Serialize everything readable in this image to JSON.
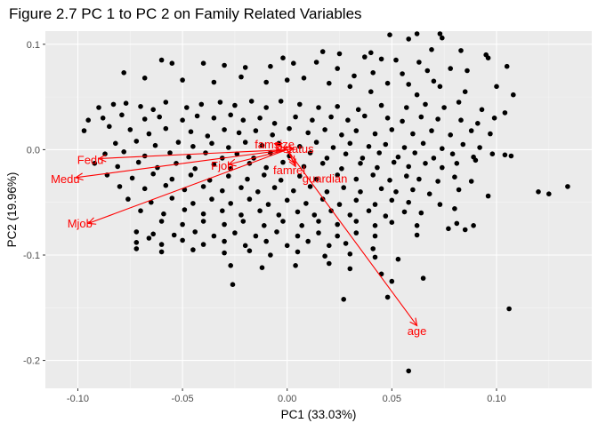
{
  "chart_data": {
    "type": "scatter",
    "title": "Figure 2.7 PC 1 to PC 2 on Family Related Variables",
    "xlabel": "PC1 (33.03%)",
    "ylabel": "PC2 (19.96%)",
    "xlim": [
      -0.1155,
      0.1455
    ],
    "ylim": [
      -0.2265,
      0.1125
    ],
    "xticks": [
      -0.1,
      -0.05,
      0.0,
      0.05,
      0.1
    ],
    "xtick_labels": [
      "-0.10",
      "-0.05",
      "0.00",
      "0.05",
      "0.10"
    ],
    "yticks": [
      -0.2,
      -0.1,
      0.0,
      0.1
    ],
    "ytick_labels": [
      "-0.2",
      "-0.1",
      "0.0",
      "0.1"
    ],
    "grid": true,
    "colors": {
      "panel": "#ebebeb",
      "grid_major": "#ffffff",
      "grid_minor": "#f5f5f5",
      "points": "#000000",
      "arrows": "#ff0000",
      "tick_label": "#4d4d4d"
    },
    "points": [
      [
        0.049,
        0.109
      ],
      [
        0.062,
        0.11
      ],
      [
        0.073,
        0.11
      ],
      [
        0.074,
        0.106
      ],
      [
        0.058,
        0.105
      ],
      [
        0.04,
        0.092
      ],
      [
        0.025,
        0.091
      ],
      [
        0.037,
        0.088
      ],
      [
        0.017,
        0.093
      ],
      [
        -0.002,
        0.087
      ],
      [
        0.095,
        0.09
      ],
      [
        0.083,
        0.094
      ],
      [
        0.069,
        0.095
      ],
      [
        0.052,
        0.085
      ],
      [
        0.045,
        0.086
      ],
      [
        0.063,
        0.083
      ],
      [
        0.078,
        0.077
      ],
      [
        0.096,
        0.087
      ],
      [
        -0.06,
        0.085
      ],
      [
        -0.055,
        0.082
      ],
      [
        -0.04,
        0.082
      ],
      [
        -0.03,
        0.08
      ],
      [
        -0.02,
        0.078
      ],
      [
        -0.008,
        0.079
      ],
      [
        0.003,
        0.082
      ],
      [
        0.014,
        0.083
      ],
      [
        0.024,
        0.077
      ],
      [
        0.032,
        0.07
      ],
      [
        0.041,
        0.073
      ],
      [
        0.055,
        0.072
      ],
      [
        0.067,
        0.075
      ],
      [
        0.086,
        0.075
      ],
      [
        0.105,
        0.079
      ],
      [
        0.07,
        0.065
      ],
      [
        0.058,
        0.062
      ],
      [
        0.048,
        0.063
      ],
      [
        -0.078,
        0.073
      ],
      [
        -0.068,
        0.068
      ],
      [
        -0.05,
        0.066
      ],
      [
        -0.035,
        0.064
      ],
      [
        -0.022,
        0.069
      ],
      [
        -0.01,
        0.064
      ],
      [
        0.0,
        0.066
      ],
      [
        0.008,
        0.068
      ],
      [
        0.02,
        0.063
      ],
      [
        0.03,
        0.06
      ],
      [
        0.04,
        0.055
      ],
      [
        0.062,
        0.052
      ],
      [
        0.073,
        0.06
      ],
      [
        0.085,
        0.055
      ],
      [
        0.1,
        0.06
      ],
      [
        0.108,
        0.052
      ],
      [
        -0.09,
        0.04
      ],
      [
        -0.083,
        0.043
      ],
      [
        -0.077,
        0.044
      ],
      [
        -0.07,
        0.041
      ],
      [
        -0.064,
        0.038
      ],
      [
        -0.058,
        0.045
      ],
      [
        -0.048,
        0.04
      ],
      [
        -0.041,
        0.043
      ],
      [
        -0.032,
        0.045
      ],
      [
        -0.025,
        0.042
      ],
      [
        -0.017,
        0.046
      ],
      [
        -0.01,
        0.04
      ],
      [
        -0.003,
        0.046
      ],
      [
        0.006,
        0.043
      ],
      [
        0.015,
        0.04
      ],
      [
        0.024,
        0.041
      ],
      [
        0.034,
        0.038
      ],
      [
        0.045,
        0.042
      ],
      [
        0.057,
        0.04
      ],
      [
        0.066,
        0.043
      ],
      [
        0.075,
        0.04
      ],
      [
        0.082,
        0.045
      ],
      [
        0.093,
        0.038
      ],
      [
        0.104,
        0.035
      ],
      [
        -0.095,
        0.028
      ],
      [
        -0.088,
        0.03
      ],
      [
        -0.079,
        0.033
      ],
      [
        -0.068,
        0.029
      ],
      [
        -0.061,
        0.031
      ],
      [
        -0.05,
        0.028
      ],
      [
        -0.043,
        0.032
      ],
      [
        -0.035,
        0.03
      ],
      [
        -0.027,
        0.033
      ],
      [
        -0.021,
        0.028
      ],
      [
        -0.013,
        0.03
      ],
      [
        -0.006,
        0.025
      ],
      [
        0.004,
        0.031
      ],
      [
        0.012,
        0.028
      ],
      [
        0.021,
        0.031
      ],
      [
        0.029,
        0.028
      ],
      [
        0.037,
        0.032
      ],
      [
        0.048,
        0.03
      ],
      [
        0.055,
        0.027
      ],
      [
        0.064,
        0.031
      ],
      [
        0.072,
        0.029
      ],
      [
        0.083,
        0.028
      ],
      [
        0.091,
        0.025
      ],
      [
        0.099,
        0.03
      ],
      [
        -0.097,
        0.018
      ],
      [
        -0.085,
        0.022
      ],
      [
        -0.075,
        0.019
      ],
      [
        -0.066,
        0.015
      ],
      [
        -0.058,
        0.02
      ],
      [
        -0.046,
        0.017
      ],
      [
        -0.038,
        0.013
      ],
      [
        -0.03,
        0.019
      ],
      [
        -0.023,
        0.016
      ],
      [
        -0.015,
        0.018
      ],
      [
        -0.007,
        0.014
      ],
      [
        0.001,
        0.02
      ],
      [
        0.01,
        0.016
      ],
      [
        0.018,
        0.019
      ],
      [
        0.026,
        0.014
      ],
      [
        0.033,
        0.018
      ],
      [
        0.042,
        0.015
      ],
      [
        0.05,
        0.019
      ],
      [
        0.06,
        0.015
      ],
      [
        0.069,
        0.018
      ],
      [
        0.078,
        0.014
      ],
      [
        0.088,
        0.018
      ],
      [
        0.097,
        0.015
      ],
      [
        -0.082,
        0.006
      ],
      [
        -0.072,
        0.008
      ],
      [
        -0.063,
        0.004
      ],
      [
        -0.052,
        0.007
      ],
      [
        -0.045,
        0.003
      ],
      [
        -0.036,
        0.006
      ],
      [
        -0.028,
        0.002
      ],
      [
        -0.02,
        0.007
      ],
      [
        -0.012,
        0.004
      ],
      [
        -0.004,
        0.006
      ],
      [
        0.006,
        0.003
      ],
      [
        0.014,
        0.007
      ],
      [
        0.022,
        0.002
      ],
      [
        0.03,
        0.006
      ],
      [
        0.039,
        0.003
      ],
      [
        0.047,
        0.005
      ],
      [
        0.056,
        0.002
      ],
      [
        0.065,
        0.006
      ],
      [
        0.074,
        0.001
      ],
      [
        0.084,
        0.005
      ],
      [
        0.092,
        0.002
      ],
      [
        -0.087,
        -0.004
      ],
      [
        -0.078,
        -0.002
      ],
      [
        -0.068,
        -0.006
      ],
      [
        -0.056,
        -0.003
      ],
      [
        -0.047,
        -0.007
      ],
      [
        -0.039,
        -0.003
      ],
      [
        -0.031,
        -0.008
      ],
      [
        -0.024,
        -0.004
      ],
      [
        -0.016,
        -0.008
      ],
      [
        -0.008,
        -0.003
      ],
      [
        0.001,
        -0.006
      ],
      [
        0.011,
        -0.003
      ],
      [
        0.019,
        -0.008
      ],
      [
        0.028,
        -0.004
      ],
      [
        0.036,
        -0.008
      ],
      [
        0.044,
        -0.003
      ],
      [
        0.053,
        -0.007
      ],
      [
        0.061,
        -0.003
      ],
      [
        0.07,
        -0.008
      ],
      [
        0.079,
        -0.004
      ],
      [
        0.089,
        -0.007
      ],
      [
        0.098,
        -0.004
      ],
      [
        0.104,
        -0.005
      ],
      [
        0.107,
        -0.006
      ],
      [
        -0.092,
        -0.013
      ],
      [
        -0.081,
        -0.016
      ],
      [
        -0.071,
        -0.012
      ],
      [
        -0.062,
        -0.017
      ],
      [
        -0.053,
        -0.013
      ],
      [
        -0.044,
        -0.018
      ],
      [
        -0.035,
        -0.014
      ],
      [
        -0.027,
        -0.018
      ],
      [
        -0.018,
        -0.013
      ],
      [
        -0.01,
        -0.017
      ],
      [
        -0.002,
        -0.012
      ],
      [
        0.008,
        -0.016
      ],
      [
        0.017,
        -0.013
      ],
      [
        0.026,
        -0.018
      ],
      [
        0.035,
        -0.013
      ],
      [
        0.043,
        -0.017
      ],
      [
        0.051,
        -0.012
      ],
      [
        0.058,
        -0.016
      ],
      [
        0.066,
        -0.013
      ],
      [
        0.074,
        -0.017
      ],
      [
        0.081,
        -0.013
      ],
      [
        0.09,
        -0.01
      ],
      [
        -0.086,
        -0.024
      ],
      [
        -0.074,
        -0.027
      ],
      [
        -0.064,
        -0.023
      ],
      [
        -0.055,
        -0.028
      ],
      [
        -0.046,
        -0.024
      ],
      [
        -0.037,
        -0.029
      ],
      [
        -0.028,
        -0.025
      ],
      [
        -0.019,
        -0.028
      ],
      [
        -0.011,
        -0.024
      ],
      [
        -0.003,
        -0.029
      ],
      [
        0.006,
        -0.025
      ],
      [
        0.014,
        -0.028
      ],
      [
        0.024,
        -0.024
      ],
      [
        0.033,
        -0.028
      ],
      [
        0.041,
        -0.024
      ],
      [
        0.049,
        -0.029
      ],
      [
        0.057,
        -0.025
      ],
      [
        0.063,
        -0.028
      ],
      [
        0.072,
        -0.03
      ],
      [
        0.08,
        -0.026
      ],
      [
        0.088,
        -0.03
      ],
      [
        -0.08,
        -0.035
      ],
      [
        -0.068,
        -0.037
      ],
      [
        -0.058,
        -0.034
      ],
      [
        -0.049,
        -0.038
      ],
      [
        -0.04,
        -0.035
      ],
      [
        -0.031,
        -0.039
      ],
      [
        -0.022,
        -0.036
      ],
      [
        -0.014,
        -0.04
      ],
      [
        -0.006,
        -0.036
      ],
      [
        0.003,
        -0.039
      ],
      [
        0.011,
        -0.035
      ],
      [
        0.019,
        -0.04
      ],
      [
        0.027,
        -0.036
      ],
      [
        0.035,
        -0.04
      ],
      [
        0.045,
        -0.037
      ],
      [
        0.052,
        -0.04
      ],
      [
        0.06,
        -0.038
      ],
      [
        0.068,
        -0.042
      ],
      [
        0.082,
        -0.038
      ],
      [
        0.096,
        -0.044
      ],
      [
        0.12,
        -0.04
      ],
      [
        0.125,
        -0.042
      ],
      [
        0.134,
        -0.035
      ],
      [
        -0.076,
        -0.047
      ],
      [
        -0.065,
        -0.05
      ],
      [
        -0.055,
        -0.046
      ],
      [
        -0.045,
        -0.051
      ],
      [
        -0.036,
        -0.047
      ],
      [
        -0.027,
        -0.051
      ],
      [
        -0.018,
        -0.047
      ],
      [
        -0.009,
        -0.052
      ],
      [
        0.0,
        -0.048
      ],
      [
        0.009,
        -0.051
      ],
      [
        0.017,
        -0.047
      ],
      [
        0.025,
        -0.052
      ],
      [
        0.033,
        -0.048
      ],
      [
        0.042,
        -0.052
      ],
      [
        0.05,
        -0.048
      ],
      [
        0.058,
        -0.05
      ],
      [
        0.073,
        -0.052
      ],
      [
        0.08,
        -0.056
      ],
      [
        -0.07,
        -0.058
      ],
      [
        -0.059,
        -0.061
      ],
      [
        -0.049,
        -0.057
      ],
      [
        -0.04,
        -0.061
      ],
      [
        -0.031,
        -0.058
      ],
      [
        -0.022,
        -0.062
      ],
      [
        -0.013,
        -0.058
      ],
      [
        -0.004,
        -0.062
      ],
      [
        0.005,
        -0.059
      ],
      [
        0.013,
        -0.062
      ],
      [
        0.021,
        -0.058
      ],
      [
        0.03,
        -0.062
      ],
      [
        0.039,
        -0.058
      ],
      [
        0.047,
        -0.063
      ],
      [
        0.056,
        -0.059
      ],
      [
        0.064,
        -0.06
      ],
      [
        -0.06,
        -0.068
      ],
      [
        -0.05,
        -0.071
      ],
      [
        -0.04,
        -0.068
      ],
      [
        -0.03,
        -0.071
      ],
      [
        -0.021,
        -0.068
      ],
      [
        -0.011,
        -0.072
      ],
      [
        -0.002,
        -0.068
      ],
      [
        0.007,
        -0.072
      ],
      [
        0.015,
        -0.068
      ],
      [
        0.024,
        -0.071
      ],
      [
        0.033,
        -0.068
      ],
      [
        0.042,
        -0.072
      ],
      [
        0.05,
        -0.069
      ],
      [
        0.062,
        -0.072
      ],
      [
        0.077,
        -0.075
      ],
      [
        0.081,
        -0.07
      ],
      [
        0.085,
        -0.076
      ],
      [
        0.089,
        -0.072
      ],
      [
        -0.072,
        -0.078
      ],
      [
        -0.064,
        -0.08
      ],
      [
        -0.054,
        -0.081
      ],
      [
        -0.044,
        -0.078
      ],
      [
        -0.035,
        -0.082
      ],
      [
        -0.025,
        -0.079
      ],
      [
        -0.015,
        -0.082
      ],
      [
        -0.005,
        -0.078
      ],
      [
        0.005,
        -0.082
      ],
      [
        0.015,
        -0.079
      ],
      [
        0.024,
        -0.082
      ],
      [
        0.033,
        -0.079
      ],
      [
        0.042,
        -0.082
      ],
      [
        0.062,
        -0.081
      ],
      [
        -0.072,
        -0.088
      ],
      [
        -0.066,
        -0.084
      ],
      [
        -0.06,
        -0.09
      ],
      [
        -0.05,
        -0.086
      ],
      [
        -0.04,
        -0.09
      ],
      [
        -0.03,
        -0.087
      ],
      [
        -0.02,
        -0.091
      ],
      [
        -0.01,
        -0.087
      ],
      [
        0.0,
        -0.091
      ],
      [
        0.01,
        -0.087
      ],
      [
        0.02,
        -0.091
      ],
      [
        0.028,
        -0.089
      ],
      [
        0.041,
        -0.094
      ],
      [
        -0.072,
        -0.094
      ],
      [
        -0.06,
        -0.097
      ],
      [
        -0.045,
        -0.095
      ],
      [
        -0.03,
        -0.098
      ],
      [
        -0.018,
        -0.096
      ],
      [
        -0.008,
        -0.1
      ],
      [
        0.005,
        -0.097
      ],
      [
        0.018,
        -0.101
      ],
      [
        0.03,
        -0.099
      ],
      [
        0.042,
        -0.102
      ],
      [
        0.053,
        -0.104
      ],
      [
        -0.027,
        -0.11
      ],
      [
        -0.012,
        -0.112
      ],
      [
        0.004,
        -0.11
      ],
      [
        0.02,
        -0.108
      ],
      [
        0.03,
        -0.113
      ],
      [
        0.045,
        -0.118
      ],
      [
        0.05,
        -0.125
      ],
      [
        0.065,
        -0.122
      ],
      [
        -0.026,
        -0.128
      ],
      [
        0.027,
        -0.142
      ],
      [
        0.048,
        -0.14
      ],
      [
        0.106,
        -0.151
      ],
      [
        0.058,
        -0.21
      ]
    ],
    "arrows": [
      {
        "name": "Fedu",
        "x": -0.09,
        "y": -0.0085
      },
      {
        "name": "Medu",
        "x": -0.101,
        "y": -0.0265
      },
      {
        "name": "Mjob",
        "x": -0.095,
        "y": -0.07
      },
      {
        "name": "Fjob",
        "x": -0.028,
        "y": -0.014
      },
      {
        "name": "famsize",
        "x": -0.006,
        "y": 0.0058
      },
      {
        "name": "Pstatus",
        "x": 0.003,
        "y": 0.001
      },
      {
        "name": "famrel",
        "x": 0.004,
        "y": -0.016
      },
      {
        "name": "guardian",
        "x": 0.0035,
        "y": -0.013
      },
      {
        "name": "age",
        "x": 0.062,
        "y": -0.167
      }
    ],
    "labels": [
      {
        "text": "Fedu",
        "x": -0.094,
        "y": -0.0095
      },
      {
        "text": "Medu",
        "x": -0.106,
        "y": -0.0275
      },
      {
        "text": "Mjob",
        "x": -0.099,
        "y": -0.0695
      },
      {
        "text": "Fjob",
        "x": -0.031,
        "y": -0.015
      },
      {
        "text": "famsize",
        "x": -0.006,
        "y": 0.0055
      },
      {
        "text": "Pstatus",
        "x": 0.0035,
        "y": 0.001
      },
      {
        "text": "famrel",
        "x": 0.001,
        "y": -0.019
      },
      {
        "text": "guardian",
        "x": 0.018,
        "y": -0.027
      },
      {
        "text": "age",
        "x": 0.062,
        "y": -0.1715
      }
    ]
  }
}
